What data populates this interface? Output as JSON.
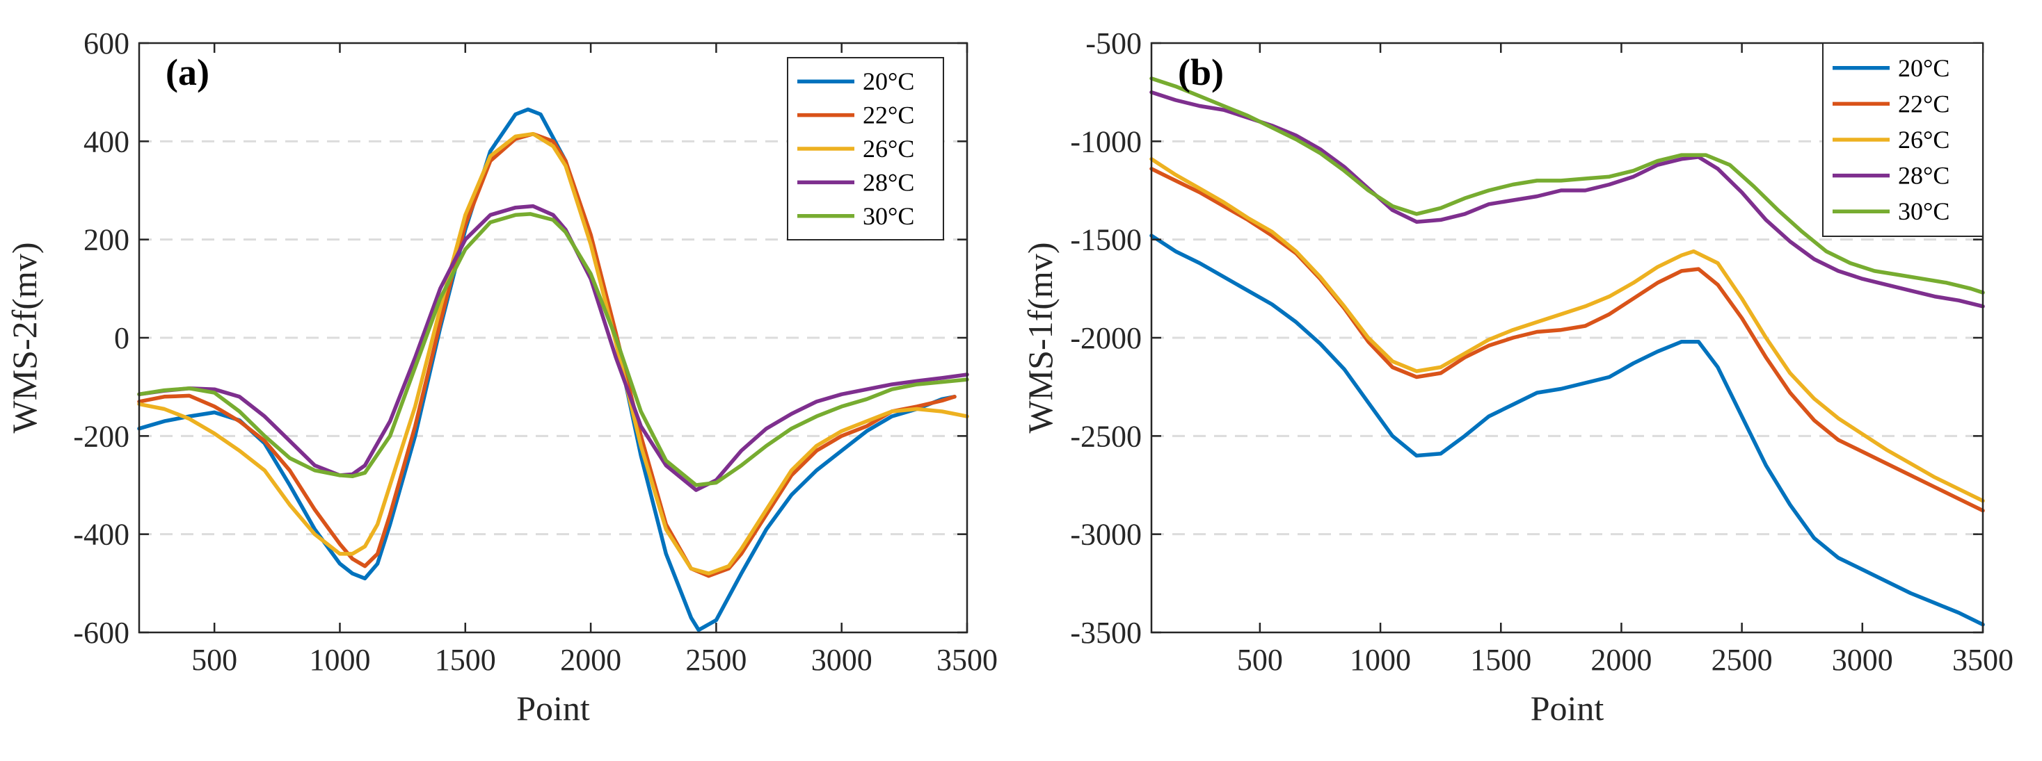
{
  "chart_data": [
    {
      "type": "line",
      "panel_label": "(a)",
      "xlabel": "Point",
      "ylabel": "WMS-2f(mv)",
      "xlim": [
        200,
        3500
      ],
      "ylim": [
        -600,
        600
      ],
      "xticks": [
        500,
        1000,
        1500,
        2000,
        2500,
        3000,
        3500
      ],
      "yticks": [
        -600,
        -400,
        -200,
        0,
        200,
        400,
        600
      ],
      "grid": "horizontal dashed",
      "legend_position": "top-right",
      "series": [
        {
          "name": "20°C",
          "color": "#0072BD",
          "x": [
            200,
            300,
            400,
            500,
            600,
            700,
            800,
            900,
            1000,
            1050,
            1100,
            1150,
            1200,
            1300,
            1400,
            1500,
            1600,
            1700,
            1750,
            1800,
            1900,
            2000,
            2100,
            2200,
            2300,
            2400,
            2430,
            2500,
            2600,
            2700,
            2800,
            2900,
            3000,
            3100,
            3200,
            3300,
            3400,
            3450
          ],
          "y": [
            -185,
            -170,
            -160,
            -152,
            -168,
            -215,
            -300,
            -390,
            -460,
            -480,
            -490,
            -460,
            -380,
            -200,
            20,
            220,
            380,
            455,
            465,
            455,
            360,
            200,
            0,
            -240,
            -440,
            -570,
            -595,
            -575,
            -480,
            -390,
            -320,
            -270,
            -230,
            -190,
            -160,
            -145,
            -125,
            -120
          ]
        },
        {
          "name": "22°C",
          "color": "#D95319",
          "x": [
            200,
            300,
            400,
            500,
            600,
            700,
            800,
            900,
            1000,
            1050,
            1100,
            1150,
            1200,
            1300,
            1400,
            1500,
            1600,
            1700,
            1770,
            1850,
            1900,
            2000,
            2100,
            2200,
            2300,
            2400,
            2470,
            2550,
            2600,
            2700,
            2800,
            2900,
            3000,
            3100,
            3200,
            3300,
            3400,
            3450
          ],
          "y": [
            -130,
            -120,
            -118,
            -140,
            -170,
            -210,
            -270,
            -350,
            -420,
            -450,
            -465,
            -440,
            -360,
            -180,
            30,
            230,
            360,
            405,
            415,
            400,
            360,
            210,
            10,
            -200,
            -380,
            -470,
            -485,
            -470,
            -440,
            -360,
            -280,
            -230,
            -200,
            -180,
            -150,
            -140,
            -128,
            -120
          ]
        },
        {
          "name": "26°C",
          "color": "#EDB120",
          "x": [
            200,
            300,
            400,
            500,
            600,
            700,
            800,
            900,
            1000,
            1050,
            1100,
            1150,
            1200,
            1300,
            1400,
            1500,
            1600,
            1700,
            1770,
            1850,
            1900,
            2000,
            2100,
            2200,
            2300,
            2400,
            2470,
            2550,
            2600,
            2700,
            2800,
            2900,
            3000,
            3100,
            3200,
            3300,
            3400,
            3500
          ],
          "y": [
            -135,
            -145,
            -165,
            -195,
            -230,
            -270,
            -340,
            -400,
            -440,
            -440,
            -425,
            -380,
            -300,
            -140,
            60,
            250,
            370,
            410,
            415,
            390,
            350,
            190,
            -10,
            -220,
            -390,
            -470,
            -480,
            -465,
            -430,
            -350,
            -270,
            -220,
            -190,
            -170,
            -150,
            -145,
            -150,
            -160
          ]
        },
        {
          "name": "28°C",
          "color": "#7E2F8E",
          "x": [
            200,
            300,
            400,
            500,
            600,
            700,
            800,
            900,
            1000,
            1050,
            1100,
            1200,
            1300,
            1400,
            1500,
            1600,
            1700,
            1770,
            1850,
            1900,
            2000,
            2100,
            2200,
            2300,
            2420,
            2500,
            2600,
            2700,
            2800,
            2900,
            3000,
            3100,
            3200,
            3300,
            3400,
            3500
          ],
          "y": [
            -115,
            -108,
            -103,
            -105,
            -120,
            -160,
            -210,
            -260,
            -280,
            -278,
            -260,
            -170,
            -40,
            100,
            200,
            250,
            265,
            268,
            250,
            220,
            120,
            -40,
            -180,
            -260,
            -310,
            -290,
            -230,
            -185,
            -155,
            -130,
            -115,
            -105,
            -95,
            -88,
            -82,
            -75
          ]
        },
        {
          "name": "30°C",
          "color": "#77AC30",
          "x": [
            200,
            300,
            400,
            500,
            600,
            700,
            800,
            900,
            1000,
            1050,
            1100,
            1200,
            1300,
            1400,
            1500,
            1600,
            1700,
            1760,
            1850,
            1900,
            2000,
            2100,
            2200,
            2300,
            2420,
            2500,
            2600,
            2700,
            2800,
            2900,
            3000,
            3100,
            3200,
            3300,
            3400,
            3500
          ],
          "y": [
            -115,
            -107,
            -103,
            -112,
            -150,
            -200,
            -245,
            -270,
            -280,
            -282,
            -275,
            -200,
            -60,
            80,
            180,
            235,
            250,
            252,
            240,
            215,
            130,
            0,
            -150,
            -250,
            -300,
            -295,
            -260,
            -220,
            -185,
            -160,
            -140,
            -125,
            -105,
            -95,
            -90,
            -85
          ]
        }
      ]
    },
    {
      "type": "line",
      "panel_label": "(b)",
      "xlabel": "Point",
      "ylabel": "WMS-1f(mv)",
      "xlim": [
        50,
        3500
      ],
      "ylim": [
        -3500,
        -500
      ],
      "xticks": [
        500,
        1000,
        1500,
        2000,
        2500,
        3000,
        3500
      ],
      "yticks": [
        -3500,
        -3000,
        -2500,
        -2000,
        -1500,
        -1000,
        -500
      ],
      "grid": "horizontal dashed",
      "legend_position": "top-right",
      "series": [
        {
          "name": "20°C",
          "color": "#0072BD",
          "x": [
            50,
            150,
            250,
            350,
            450,
            550,
            650,
            750,
            850,
            950,
            1050,
            1150,
            1250,
            1350,
            1450,
            1550,
            1650,
            1750,
            1850,
            1950,
            2050,
            2150,
            2250,
            2320,
            2400,
            2500,
            2600,
            2700,
            2800,
            2900,
            3000,
            3100,
            3200,
            3300,
            3400,
            3500
          ],
          "y": [
            -1480,
            -1560,
            -1620,
            -1690,
            -1760,
            -1830,
            -1920,
            -2030,
            -2160,
            -2330,
            -2500,
            -2600,
            -2590,
            -2500,
            -2400,
            -2340,
            -2280,
            -2260,
            -2230,
            -2200,
            -2130,
            -2070,
            -2020,
            -2020,
            -2150,
            -2400,
            -2650,
            -2850,
            -3020,
            -3120,
            -3180,
            -3240,
            -3300,
            -3350,
            -3400,
            -3460
          ]
        },
        {
          "name": "22°C",
          "color": "#D95319",
          "x": [
            50,
            150,
            250,
            350,
            450,
            550,
            650,
            750,
            850,
            950,
            1050,
            1150,
            1250,
            1350,
            1450,
            1550,
            1650,
            1750,
            1850,
            1950,
            2050,
            2150,
            2250,
            2320,
            2400,
            2500,
            2600,
            2700,
            2800,
            2900,
            3000,
            3100,
            3200,
            3300,
            3400,
            3500
          ],
          "y": [
            -1140,
            -1200,
            -1260,
            -1330,
            -1400,
            -1480,
            -1570,
            -1700,
            -1850,
            -2020,
            -2150,
            -2200,
            -2180,
            -2100,
            -2040,
            -2000,
            -1970,
            -1960,
            -1940,
            -1880,
            -1800,
            -1720,
            -1660,
            -1650,
            -1730,
            -1900,
            -2100,
            -2280,
            -2420,
            -2520,
            -2580,
            -2640,
            -2700,
            -2760,
            -2820,
            -2880
          ]
        },
        {
          "name": "26°C",
          "color": "#EDB120",
          "x": [
            50,
            150,
            250,
            350,
            450,
            550,
            650,
            750,
            850,
            950,
            1050,
            1150,
            1250,
            1350,
            1450,
            1550,
            1650,
            1750,
            1850,
            1950,
            2050,
            2150,
            2250,
            2300,
            2400,
            2500,
            2600,
            2700,
            2800,
            2900,
            3000,
            3100,
            3200,
            3300,
            3400,
            3500
          ],
          "y": [
            -1090,
            -1170,
            -1240,
            -1310,
            -1390,
            -1460,
            -1560,
            -1690,
            -1840,
            -2000,
            -2120,
            -2170,
            -2150,
            -2080,
            -2010,
            -1960,
            -1920,
            -1880,
            -1840,
            -1790,
            -1720,
            -1640,
            -1580,
            -1560,
            -1620,
            -1800,
            -2000,
            -2180,
            -2310,
            -2410,
            -2490,
            -2570,
            -2640,
            -2710,
            -2770,
            -2830
          ]
        },
        {
          "name": "28°C",
          "color": "#7E2F8E",
          "x": [
            50,
            150,
            250,
            350,
            450,
            550,
            650,
            750,
            850,
            950,
            1050,
            1150,
            1250,
            1350,
            1450,
            1550,
            1650,
            1750,
            1850,
            1950,
            2050,
            2150,
            2250,
            2320,
            2400,
            2500,
            2600,
            2700,
            2800,
            2900,
            3000,
            3100,
            3200,
            3300,
            3400,
            3500
          ],
          "y": [
            -750,
            -790,
            -820,
            -840,
            -880,
            -920,
            -970,
            -1040,
            -1130,
            -1240,
            -1350,
            -1410,
            -1400,
            -1370,
            -1320,
            -1300,
            -1280,
            -1250,
            -1250,
            -1220,
            -1180,
            -1120,
            -1090,
            -1080,
            -1140,
            -1260,
            -1400,
            -1510,
            -1600,
            -1660,
            -1700,
            -1730,
            -1760,
            -1790,
            -1810,
            -1840
          ]
        },
        {
          "name": "30°C",
          "color": "#77AC30",
          "x": [
            50,
            150,
            250,
            350,
            450,
            550,
            650,
            750,
            850,
            950,
            1050,
            1150,
            1250,
            1350,
            1450,
            1550,
            1650,
            1750,
            1850,
            1950,
            2050,
            2150,
            2250,
            2350,
            2450,
            2550,
            2650,
            2750,
            2850,
            2950,
            3050,
            3150,
            3250,
            3350,
            3450,
            3500
          ],
          "y": [
            -680,
            -720,
            -770,
            -820,
            -870,
            -930,
            -990,
            -1060,
            -1150,
            -1250,
            -1330,
            -1370,
            -1340,
            -1290,
            -1250,
            -1220,
            -1200,
            -1200,
            -1190,
            -1180,
            -1150,
            -1100,
            -1070,
            -1070,
            -1120,
            -1230,
            -1350,
            -1460,
            -1560,
            -1620,
            -1660,
            -1680,
            -1700,
            -1720,
            -1750,
            -1770
          ]
        }
      ]
    }
  ]
}
